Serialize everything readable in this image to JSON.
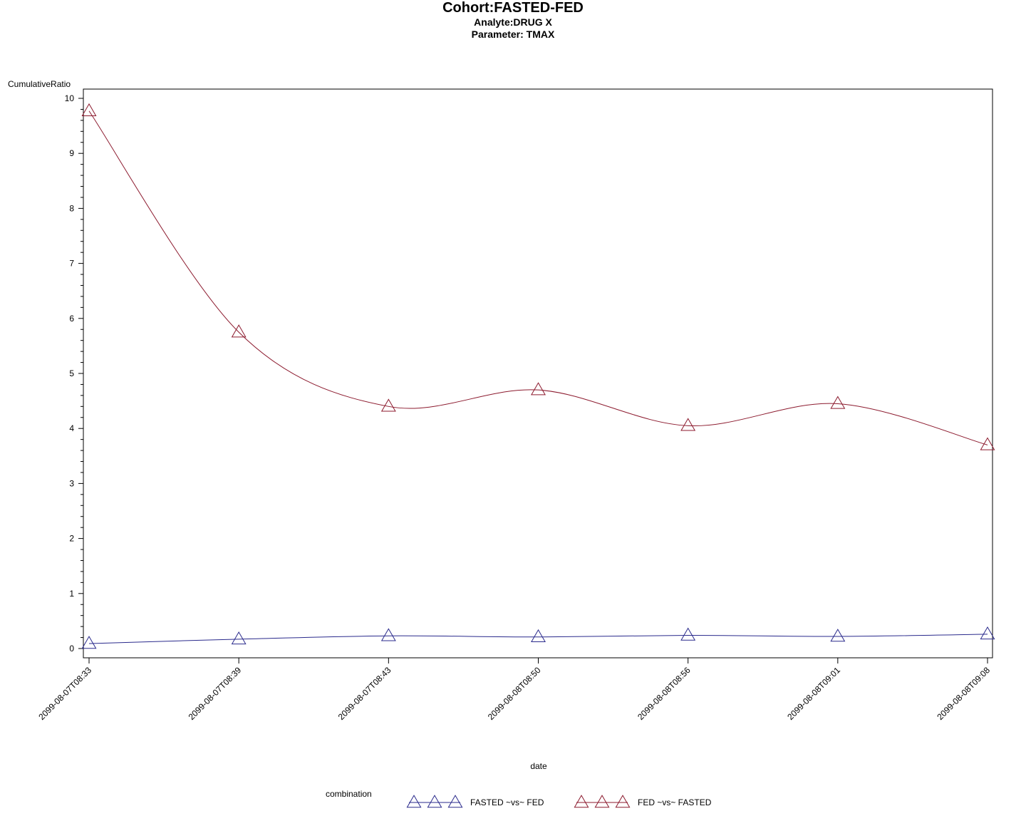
{
  "header": {
    "title": "Cohort:FASTED-FED",
    "subtitle1": "Analyte:DRUG X",
    "subtitle2": "Parameter: TMAX"
  },
  "chart_data": {
    "type": "line",
    "xlabel": "date",
    "ylabel": "CumulativeRatio",
    "ylim": [
      0,
      10
    ],
    "yticks": [
      "0",
      "1",
      "2",
      "3",
      "4",
      "5",
      "6",
      "7",
      "8",
      "9",
      "10"
    ],
    "categories": [
      "2099-08-07T08:33",
      "2099-08-07T08:39",
      "2099-08-07T08:43",
      "2099-08-08T08:50",
      "2099-08-08T08:56",
      "2099-08-08T09:01",
      "2099-08-08T09:08"
    ],
    "legend_title": "combination",
    "legend_position": "bottom",
    "grid": false,
    "series": [
      {
        "name": "FASTED ~vs~ FED",
        "color": "#2a2a8c",
        "marker": "triangle",
        "values": [
          0.09,
          0.17,
          0.23,
          0.21,
          0.24,
          0.22,
          0.26
        ]
      },
      {
        "name": "FED ~vs~ FASTED",
        "color": "#8c1a2e",
        "marker": "triangle",
        "values": [
          9.77,
          5.75,
          4.4,
          4.7,
          4.05,
          4.45,
          3.7
        ]
      }
    ]
  }
}
